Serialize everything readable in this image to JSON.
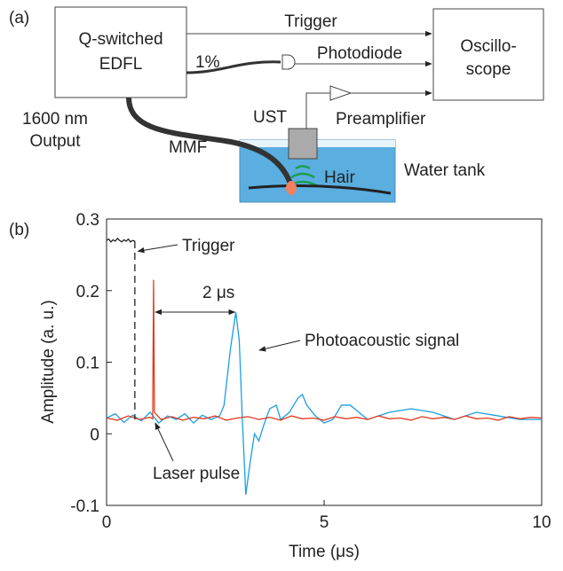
{
  "diagram": {
    "panel_label": "(a)",
    "laser": [
      "Q-switched",
      "EDFL"
    ],
    "scope": [
      "Oscillo-",
      "scope"
    ],
    "trigger": "Trigger",
    "photodiode": "Photodiode",
    "split": "1%",
    "preamplifier": "Preamplifier",
    "ust": "UST",
    "output": [
      "1600 nm",
      "Output"
    ],
    "fiber": "MMF",
    "hair": "Hair",
    "tank": "Water tank"
  },
  "chart_data": {
    "type": "line",
    "panel_label": "(b)",
    "x_label": "Time (μs)",
    "y_label": "Amplitude (a. u.)",
    "xlim": [
      0,
      10
    ],
    "ylim": [
      -0.1,
      0.3
    ],
    "xticks": [
      0,
      5,
      10
    ],
    "yticks": [
      -0.1,
      0,
      0.1,
      0.2,
      0.3
    ],
    "annotations": {
      "trigger": "Trigger",
      "delay": "2 μs",
      "photoacoustic": "Photoacoustic signal",
      "laser": "Laser pulse"
    },
    "series": [
      {
        "name": "Trigger",
        "color": "#222222",
        "x": [
          0,
          0.05,
          0.1,
          0.15,
          0.2,
          0.25,
          0.3,
          0.35,
          0.4,
          0.45,
          0.5,
          0.55,
          0.6,
          0.65,
          0.65
        ],
        "values": [
          0.27,
          0.272,
          0.268,
          0.271,
          0.269,
          0.273,
          0.27,
          0.268,
          0.271,
          0.269,
          0.272,
          0.268,
          0.27,
          0.269,
          0.02
        ]
      },
      {
        "name": "Laser pulse",
        "color": "#e03a1e",
        "x": [
          0,
          0.25,
          0.5,
          0.75,
          1.0,
          1.06,
          1.08,
          1.1,
          1.25,
          1.5,
          1.75,
          2,
          2.25,
          2.5,
          2.75,
          3,
          3.25,
          3.5,
          3.75,
          4,
          4.25,
          4.5,
          4.75,
          5,
          5.25,
          5.5,
          5.75,
          6,
          6.25,
          6.5,
          6.75,
          7,
          7.25,
          7.5,
          7.75,
          8,
          8.25,
          8.5,
          8.75,
          9,
          9.25,
          9.5,
          9.75,
          10
        ],
        "values": [
          0.022,
          0.019,
          0.025,
          0.02,
          0.023,
          0.021,
          0.215,
          0.03,
          0.02,
          0.024,
          0.019,
          0.023,
          0.021,
          0.025,
          0.019,
          0.022,
          0.024,
          0.02,
          0.023,
          0.019,
          0.025,
          0.021,
          0.022,
          0.019,
          0.024,
          0.021,
          0.023,
          0.02,
          0.025,
          0.021,
          0.022,
          0.019,
          0.024,
          0.021,
          0.023,
          0.02,
          0.025,
          0.021,
          0.022,
          0.019,
          0.024,
          0.021,
          0.023,
          0.022
        ]
      },
      {
        "name": "Photoacoustic signal",
        "color": "#1a9fe0",
        "x": [
          0,
          0.2,
          0.4,
          0.6,
          0.8,
          1.0,
          1.2,
          1.4,
          1.6,
          1.8,
          2.0,
          2.2,
          2.4,
          2.6,
          2.7,
          2.85,
          2.97,
          3.05,
          3.12,
          3.2,
          3.3,
          3.4,
          3.5,
          3.6,
          3.75,
          3.9,
          4.0,
          4.2,
          4.4,
          4.5,
          4.6,
          4.8,
          5.0,
          5.2,
          5.4,
          5.6,
          5.8,
          6.0,
          6.5,
          7.0,
          7.5,
          8.0,
          8.5,
          9.0,
          9.5,
          10
        ],
        "values": [
          0.022,
          0.028,
          0.016,
          0.026,
          0.018,
          0.03,
          0.015,
          0.025,
          0.02,
          0.028,
          0.015,
          0.026,
          0.02,
          0.025,
          0.04,
          0.12,
          0.17,
          0.13,
          0.02,
          -0.085,
          -0.04,
          0.0,
          -0.01,
          0.01,
          0.035,
          0.04,
          0.02,
          0.03,
          0.05,
          0.055,
          0.04,
          0.025,
          0.015,
          0.02,
          0.04,
          0.04,
          0.03,
          0.02,
          0.03,
          0.035,
          0.03,
          0.02,
          0.03,
          0.025,
          0.02,
          0.02
        ]
      }
    ]
  }
}
